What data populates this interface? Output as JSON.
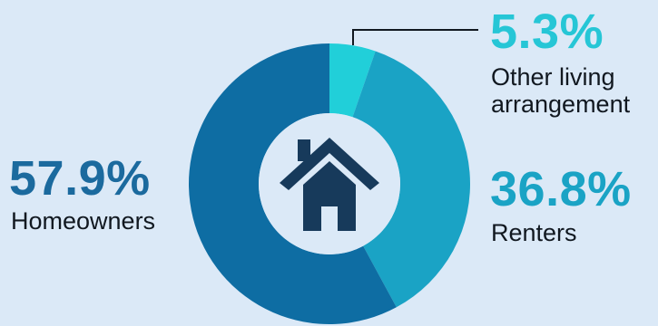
{
  "chart_data": {
    "type": "pie",
    "title": "",
    "categories": [
      "Other living arrangement",
      "Renters",
      "Homeowners"
    ],
    "values": [
      5.3,
      36.8,
      57.9
    ],
    "value_labels": [
      "5.3%",
      "36.8%",
      "57.9%"
    ],
    "colors": [
      "#21cfd9",
      "#1aa3c5",
      "#0e6da3"
    ],
    "label_colors": [
      "#26c6d6",
      "#1aa3c5",
      "#1b6a9e"
    ],
    "donut": true,
    "legend": "none",
    "center_icon": "house-icon",
    "center_icon_color": "#173a5b"
  }
}
